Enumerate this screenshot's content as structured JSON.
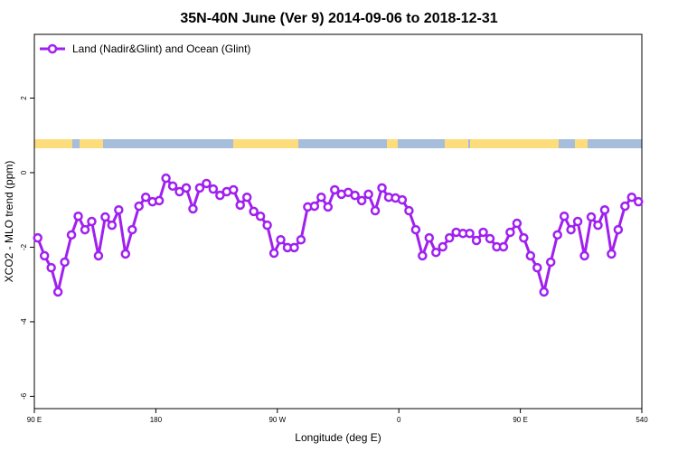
{
  "chart_data": {
    "type": "line",
    "title": "35N-40N June (Ver 9)   2014-09-06 to 2018-12-31",
    "x_label": "Longitude (deg E)",
    "y_label": "XCO2 - MLO trend (ppm)",
    "x": [
      92.5,
      97.5,
      102.5,
      107.5,
      112.5,
      117.5,
      122.5,
      127.5,
      132.5,
      137.5,
      142.5,
      147.5,
      152.5,
      157.5,
      162.5,
      167.5,
      172.5,
      177.5,
      182.5,
      187.5,
      192.5,
      197.5,
      202.5,
      207.5,
      212.5,
      217.5,
      222.5,
      227.5,
      232.5,
      237.5,
      242.5,
      247.5,
      252.5,
      257.5,
      262.5,
      267.5,
      272.5,
      277.5,
      282.5,
      287.5,
      292.5,
      297.5,
      302.5,
      307.5,
      312.5,
      317.5,
      322.5,
      327.5,
      332.5,
      337.5,
      342.5,
      347.5,
      352.5,
      357.5,
      362.5,
      367.5,
      372.5,
      377.5,
      382.5,
      387.5,
      392.5,
      397.5,
      402.5,
      407.5,
      412.5,
      417.5,
      422.5,
      427.5,
      432.5,
      437.5,
      442.5,
      447.5,
      452.5,
      457.5,
      462.5,
      467.5,
      472.5,
      477.5,
      482.5,
      487.5,
      492.5,
      497.5,
      502.5,
      507.5,
      512.5,
      517.5,
      522.5,
      527.5,
      532.5,
      537.5
    ],
    "series": [
      {
        "name": "Land (Nadir&Glint) and Ocean (Glint)",
        "color": "#a020f0",
        "values": [
          -1.75,
          -2.23,
          -2.55,
          -3.2,
          -2.4,
          -1.67,
          -1.17,
          -1.53,
          -1.31,
          -2.23,
          -1.19,
          -1.41,
          -1.0,
          -2.18,
          -1.53,
          -0.9,
          -0.66,
          -0.78,
          -0.75,
          -0.15,
          -0.36,
          -0.51,
          -0.41,
          -0.97,
          -0.41,
          -0.29,
          -0.44,
          -0.61,
          -0.51,
          -0.46,
          -0.87,
          -0.66,
          -1.04,
          -1.17,
          -1.41,
          -2.16,
          -1.8,
          -2.01,
          -2.01,
          -1.8,
          -0.92,
          -0.9,
          -0.66,
          -0.92,
          -0.46,
          -0.58,
          -0.53,
          -0.61,
          -0.75,
          -0.58,
          -1.02,
          -0.41,
          -0.66,
          -0.68,
          -0.73,
          -1.02,
          -1.53,
          -2.23,
          -1.75,
          -2.14,
          -1.99,
          -1.75,
          -1.6,
          -1.63,
          -1.63,
          -1.82,
          -1.6,
          -1.77,
          -1.99,
          -1.99,
          -1.6,
          -1.36,
          -1.75,
          -2.23,
          -2.55,
          -3.2,
          -2.4,
          -1.67,
          -1.17,
          -1.53,
          -1.31,
          -2.23,
          -1.19,
          -1.41,
          -1.0,
          -2.18,
          -1.53,
          -0.9,
          -0.66,
          -0.78
        ]
      }
    ],
    "xlim": [
      90,
      540
    ],
    "xticks": [
      {
        "value": 90,
        "label": "90 E"
      },
      180,
      {
        "value": 270,
        "label": "90 W"
      },
      {
        "value": 360,
        "label": "0"
      },
      {
        "value": 450,
        "label": "90 E"
      },
      540
    ],
    "ylim": [
      -6.33,
      3.71
    ],
    "yticks": [
      2,
      0,
      -2,
      -4,
      -6
    ],
    "legend": "top-left"
  }
}
